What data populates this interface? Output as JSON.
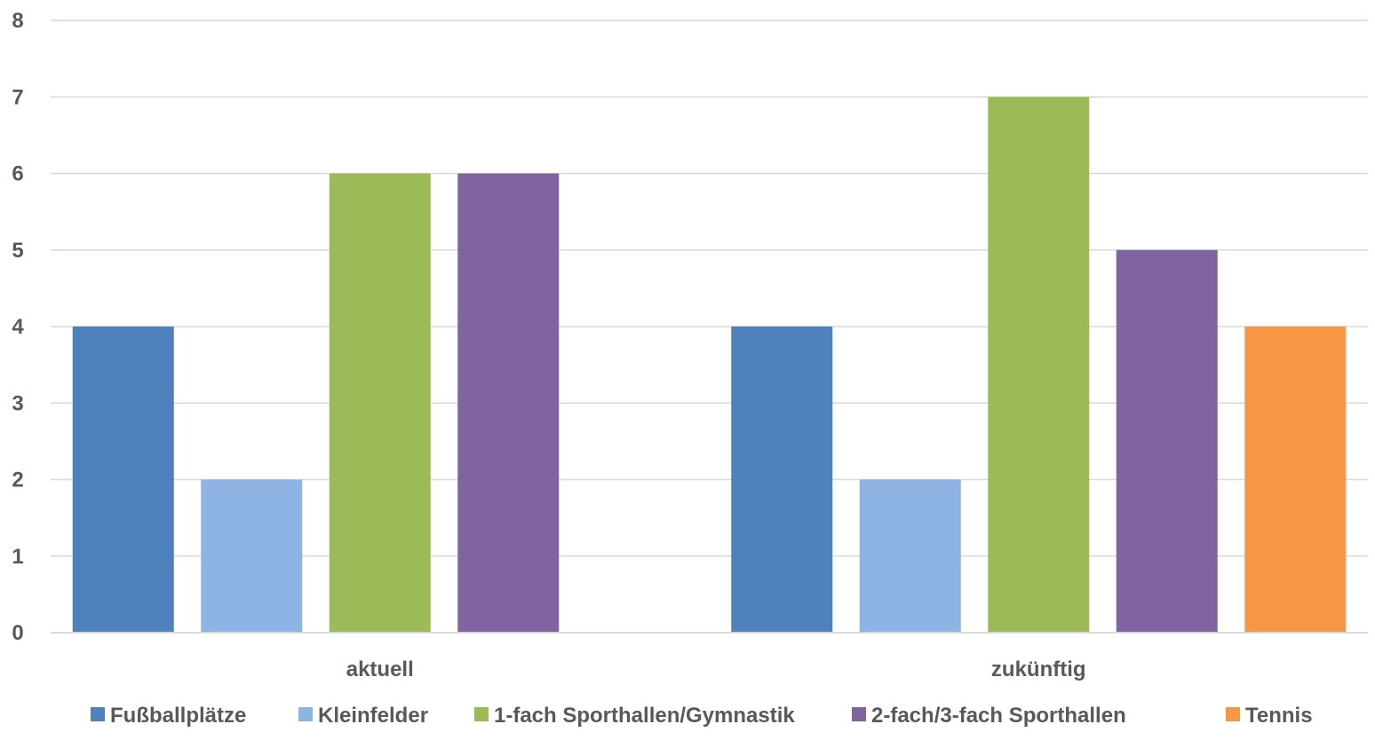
{
  "chart_data": {
    "type": "bar",
    "title": "",
    "xlabel": "",
    "ylabel": "",
    "categories": [
      "aktuell",
      "zukünftig"
    ],
    "ylim": [
      0,
      8
    ],
    "yticks": [
      "0",
      "1",
      "2",
      "3",
      "4",
      "5",
      "6",
      "7",
      "8"
    ],
    "grid": true,
    "legend_position": "bottom",
    "series": [
      {
        "name": "Fußballplätze",
        "color": "#4F81BD",
        "values": [
          4,
          4
        ]
      },
      {
        "name": "Kleinfelder",
        "color": "#8EB4E3",
        "values": [
          2,
          2
        ]
      },
      {
        "name": "1-fach Sporthallen/Gymnastik",
        "color": "#9BBB59",
        "values": [
          6,
          7
        ]
      },
      {
        "name": "2-fach/3-fach Sporthallen",
        "color": "#8064A2",
        "values": [
          6,
          5
        ]
      },
      {
        "name": "Tennis",
        "color": "#F79646",
        "values": [
          null,
          4
        ]
      }
    ]
  }
}
